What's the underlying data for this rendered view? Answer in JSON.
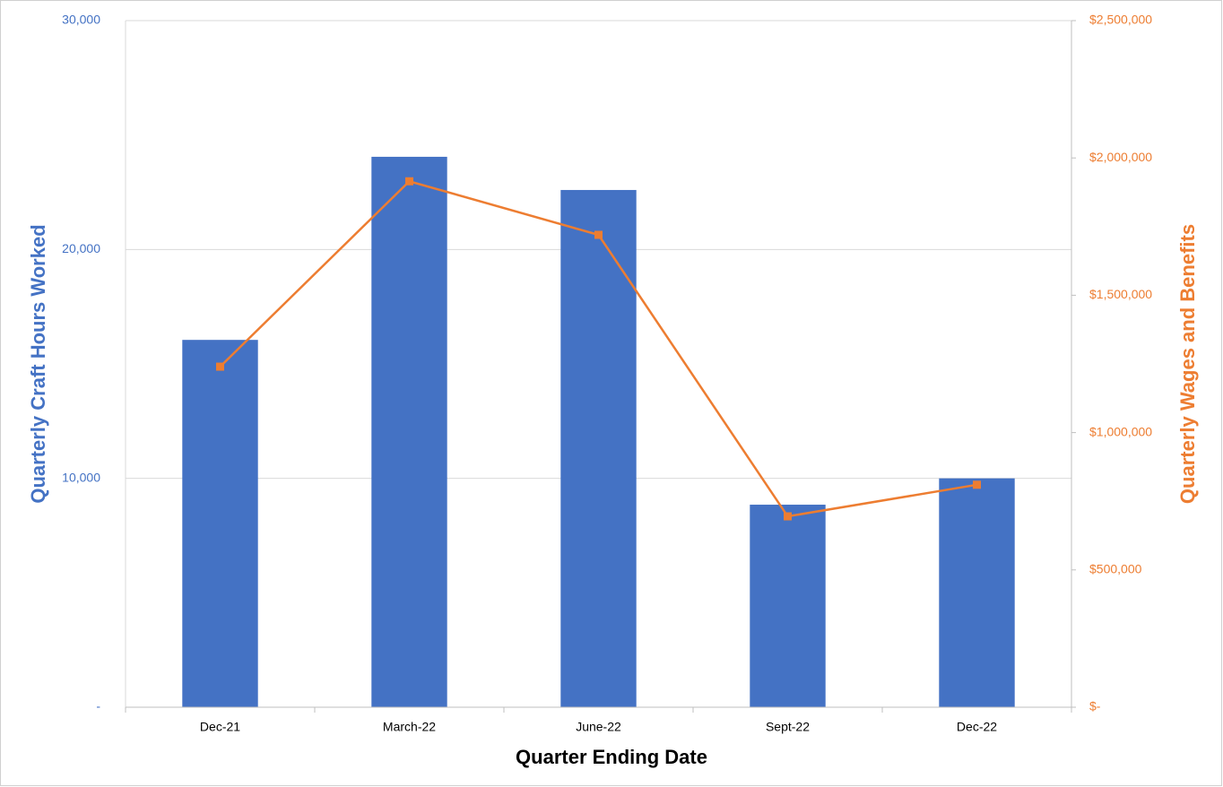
{
  "chart_data": {
    "type": "bar",
    "x_label": "Quarter Ending Date",
    "y_label": "Quarterly Craft Hours Worked",
    "y2_label": "Quarterly Wages and Benefits",
    "categories": [
      "Dec-21",
      "March-22",
      "June-22",
      "Sept-22",
      "Dec-22"
    ],
    "series": [
      {
        "type": "bar",
        "color": "#4472c4",
        "values": [
          16050,
          24050,
          22600,
          8850,
          10000
        ]
      },
      {
        "type": "line",
        "axis": "y2",
        "color": "#ed7d31",
        "values": [
          1240000,
          1915000,
          1720000,
          695000,
          810000
        ]
      }
    ],
    "ylim": [
      0,
      30000
    ],
    "yticks": [
      {
        "value": 0,
        "label": "-"
      },
      {
        "value": 10000,
        "label": "10,000"
      },
      {
        "value": 20000,
        "label": "20,000"
      },
      {
        "value": 30000,
        "label": "30,000"
      }
    ],
    "y2lim": [
      0,
      2500000
    ],
    "y2ticks": [
      {
        "value": 0,
        "label": "$-"
      },
      {
        "value": 500000,
        "label": "$500,000"
      },
      {
        "value": 1000000,
        "label": "$1,000,000"
      },
      {
        "value": 1500000,
        "label": "$1,500,000"
      },
      {
        "value": 2000000,
        "label": "$2,000,000"
      },
      {
        "value": 2500000,
        "label": "$2,500,000"
      }
    ],
    "grid": true
  }
}
